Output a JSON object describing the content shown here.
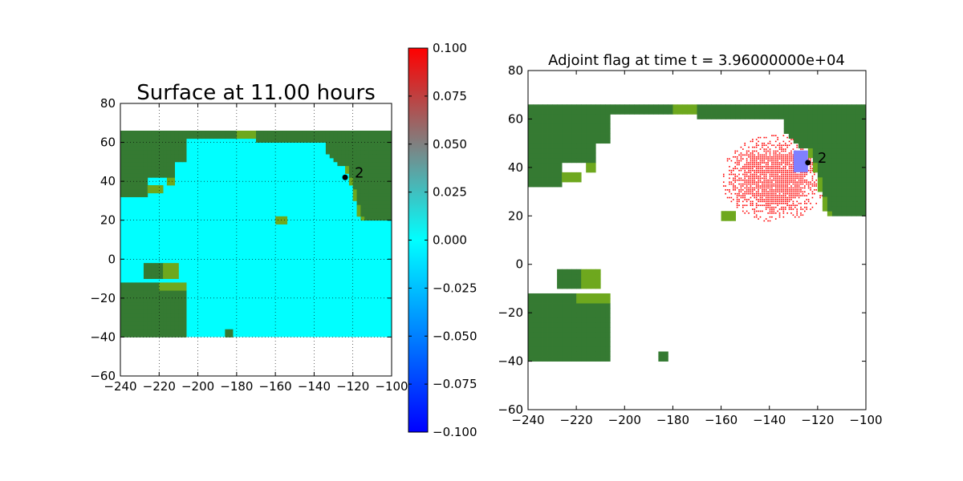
{
  "colors": {
    "land_dark": "#357a32",
    "land_light": "#6ea81e",
    "ocean": "#00ffff",
    "adjoint_red": "#ff0000",
    "gauge_box": "#8080ff",
    "axes": "#000000"
  },
  "chart_data": [
    {
      "type": "heatmap",
      "title": "Surface at 11.00 hours",
      "xlabel": "",
      "ylabel": "",
      "xlim": [
        -240,
        -100
      ],
      "ylim": [
        -60,
        80
      ],
      "xticks": [
        "−240",
        "−220",
        "−200",
        "−180",
        "−160",
        "−140",
        "−120",
        "−100"
      ],
      "yticks": [
        "−60",
        "−40",
        "−20",
        "0",
        "20",
        "40",
        "60",
        "80"
      ],
      "grid": true,
      "domain_extent": {
        "lon": [
          -240,
          -100
        ],
        "lat": [
          -40,
          65
        ]
      },
      "surface_value": 0.0,
      "gauges": [
        {
          "label": "2",
          "lon": -124,
          "lat": 42
        }
      ],
      "colorbar": {
        "min": -0.1,
        "max": 0.1,
        "colors": [
          "#0000ff",
          "#00ffff",
          "#808080",
          "#ff0000"
        ],
        "ticks": [
          "0.100",
          "0.075",
          "0.050",
          "0.025",
          "0.000",
          "−0.025",
          "−0.050",
          "−0.075",
          "−0.100"
        ]
      }
    },
    {
      "type": "heatmap",
      "title": "Adjoint flag at time t = 3.96000000e+04",
      "xlabel": "",
      "ylabel": "",
      "xlim": [
        -240,
        -100
      ],
      "ylim": [
        -60,
        80
      ],
      "xticks": [
        "−240",
        "−220",
        "−200",
        "−180",
        "−160",
        "−140",
        "−120",
        "−100"
      ],
      "yticks": [
        "−60",
        "−40",
        "−20",
        "0",
        "20",
        "40",
        "60",
        "80"
      ],
      "grid": false,
      "flagged_region": {
        "lon": [
          -160,
          -116
        ],
        "lat": [
          15,
          55
        ]
      },
      "gauge_box": {
        "lon": [
          -130,
          -124
        ],
        "lat": [
          38,
          47
        ]
      },
      "gauges": [
        {
          "label": "2",
          "lon": -124,
          "lat": 42
        }
      ]
    }
  ]
}
